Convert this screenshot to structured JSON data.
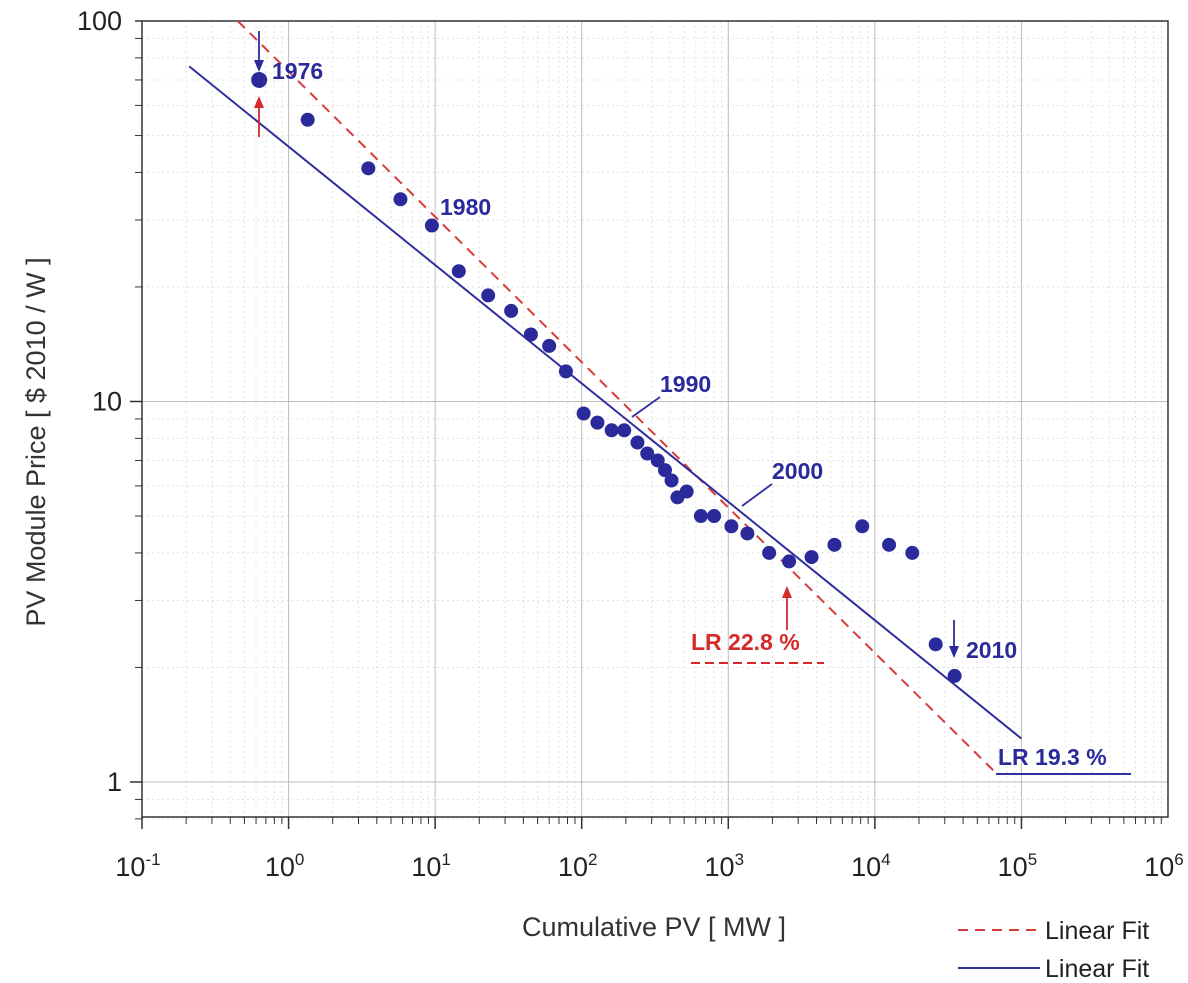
{
  "chart_data": {
    "type": "scatter",
    "xlabel": "Cumulative PV [ MW ]",
    "ylabel": "PV Module Price [ $ 2010 / W ]",
    "x_scale": "log",
    "y_scale": "log",
    "xlim": [
      0.1,
      1000000
    ],
    "ylim": [
      0.8,
      100
    ],
    "grid": true,
    "legend_position": "bottom-right",
    "x_ticks": [
      {
        "value": 0.1,
        "base": "10",
        "exp": "-1"
      },
      {
        "value": 1,
        "base": "10",
        "exp": "0"
      },
      {
        "value": 10,
        "base": "10",
        "exp": "1"
      },
      {
        "value": 100,
        "base": "10",
        "exp": "2"
      },
      {
        "value": 1000,
        "base": "10",
        "exp": "3"
      },
      {
        "value": 10000,
        "base": "10",
        "exp": "4"
      },
      {
        "value": 100000,
        "base": "10",
        "exp": "5"
      },
      {
        "value": 1000000,
        "base": "10",
        "exp": "6"
      }
    ],
    "y_ticks": [
      {
        "value": 1,
        "label": "1"
      },
      {
        "value": 10,
        "label": "10"
      },
      {
        "value": 100,
        "label": "100"
      }
    ],
    "series": [
      {
        "color": "#2a2a9a",
        "points": [
          [
            0.63,
            70
          ],
          [
            1.35,
            55
          ],
          [
            3.5,
            41
          ],
          [
            5.8,
            34
          ],
          [
            9.5,
            29
          ],
          [
            14.5,
            22
          ],
          [
            23,
            19
          ],
          [
            33,
            17.3
          ],
          [
            45,
            15
          ],
          [
            60,
            14
          ],
          [
            78,
            12
          ],
          [
            103,
            9.3
          ],
          [
            128,
            8.8
          ],
          [
            160,
            8.4
          ],
          [
            195,
            8.4
          ],
          [
            240,
            7.8
          ],
          [
            280,
            7.3
          ],
          [
            330,
            7.0
          ],
          [
            370,
            6.6
          ],
          [
            410,
            6.2
          ],
          [
            450,
            5.6
          ],
          [
            520,
            5.8
          ],
          [
            650,
            5.0
          ],
          [
            800,
            5.0
          ],
          [
            1050,
            4.7
          ],
          [
            1350,
            4.5
          ],
          [
            1900,
            4.0
          ],
          [
            2600,
            3.8
          ],
          [
            3700,
            3.9
          ],
          [
            5300,
            4.2
          ],
          [
            8200,
            4.7
          ],
          [
            12500,
            4.2
          ],
          [
            18000,
            4.0
          ],
          [
            26000,
            2.3
          ],
          [
            35000,
            1.9
          ]
        ]
      }
    ],
    "fit_lines": [
      {
        "name": "Linear Fit",
        "style": "dashed",
        "color": "#d93b3b",
        "from": [
          0.45,
          100
        ],
        "to": [
          68000,
          1.05
        ]
      },
      {
        "name": "Linear Fit",
        "style": "solid",
        "color": "#2f2f9e",
        "from": [
          0.21,
          76
        ],
        "to": [
          100000,
          1.3
        ]
      }
    ],
    "annotations": [
      {
        "text": "1976",
        "x": 0.63,
        "y": 70,
        "color": "blue"
      },
      {
        "text": "1980",
        "x": 9.5,
        "y": 29,
        "color": "blue"
      },
      {
        "text": "1990",
        "x": 200,
        "y": 9.0,
        "color": "blue"
      },
      {
        "text": "2000",
        "x": 1300,
        "y": 5.0,
        "color": "blue"
      },
      {
        "text": "2010",
        "x": 35000,
        "y": 1.9,
        "color": "blue"
      },
      {
        "text": "LR 22.8 %",
        "color": "red"
      },
      {
        "text": "LR 19.3 %",
        "color": "blue"
      }
    ],
    "legend_entries": [
      "Linear Fit",
      "Linear Fit"
    ]
  }
}
